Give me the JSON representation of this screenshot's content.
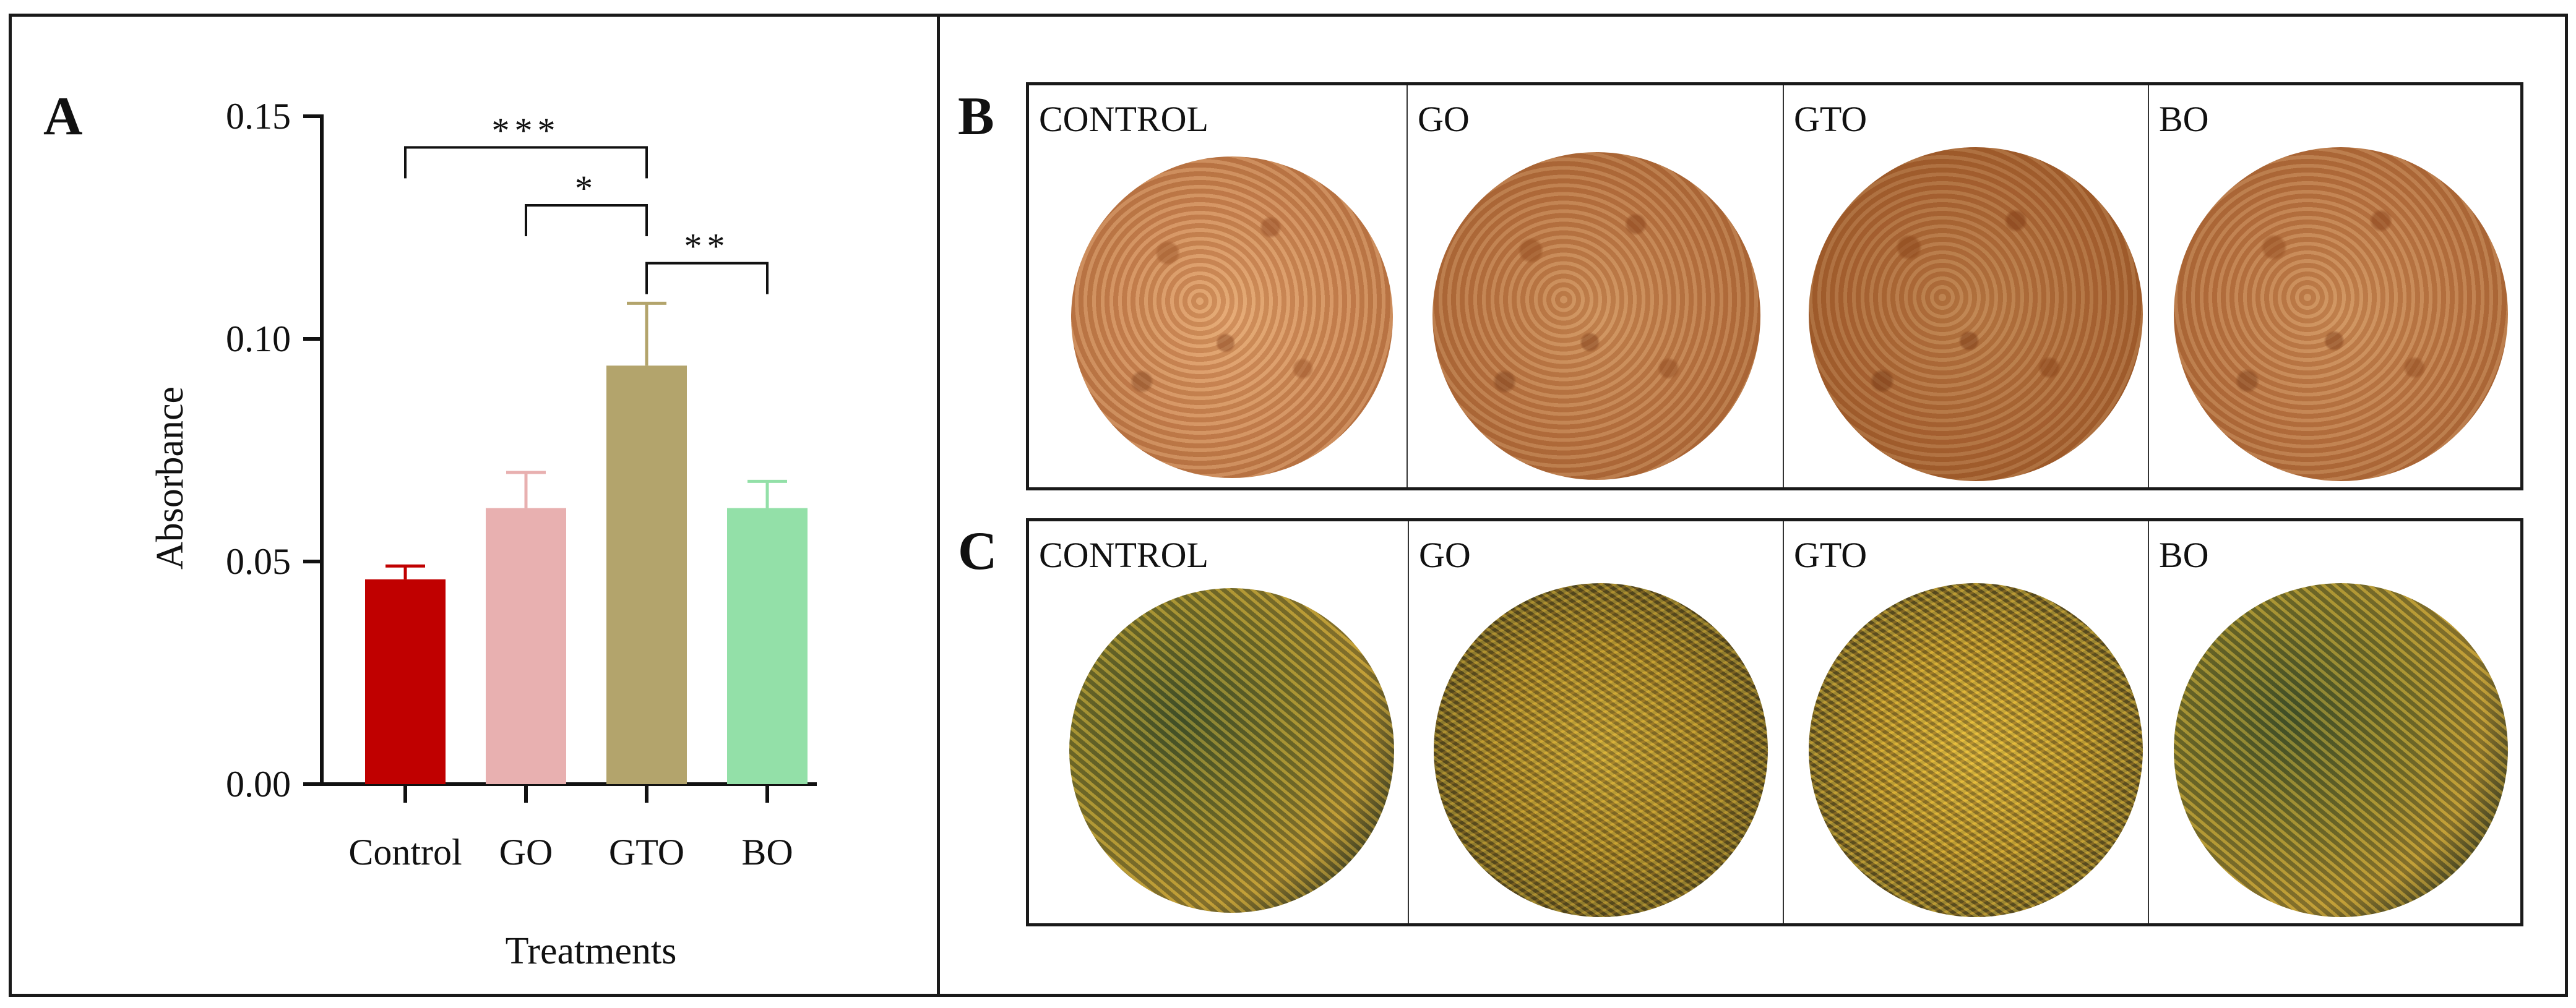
{
  "panel_letters": {
    "a": "A",
    "b": "B",
    "c": "C"
  },
  "chart_data": {
    "type": "bar",
    "categories": [
      "Control",
      "GO",
      "GTO",
      "BO"
    ],
    "values": [
      0.046,
      0.062,
      0.094,
      0.062
    ],
    "errors": [
      0.003,
      0.008,
      0.014,
      0.006
    ],
    "bar_colors": [
      "#c00000",
      "#e8b0b0",
      "#b3a46c",
      "#93e0a8"
    ],
    "error_colors": [
      "#c00000",
      "#e8b0b0",
      "#b3a46c",
      "#93e0a8"
    ],
    "xlabel": "Treatments",
    "ylabel": "Absorbance",
    "ylim": [
      0,
      0.15
    ],
    "yticks": [
      "0.00",
      "0.05",
      "0.10",
      "0.15"
    ],
    "ytick_values": [
      0,
      0.05,
      0.1,
      0.15
    ],
    "grid": false,
    "significance": [
      {
        "from": 0,
        "to": 2,
        "label": "***",
        "level": 0.143
      },
      {
        "from": 1,
        "to": 2,
        "label": "*",
        "level": 0.13
      },
      {
        "from": 2,
        "to": 3,
        "label": "**",
        "level": 0.117
      }
    ]
  },
  "panel_b": {
    "labels": [
      "CONTROL",
      "GO",
      "GTO",
      "BO"
    ]
  },
  "panel_c": {
    "labels": [
      "CONTROL",
      "GO",
      "GTO",
      "BO"
    ]
  }
}
